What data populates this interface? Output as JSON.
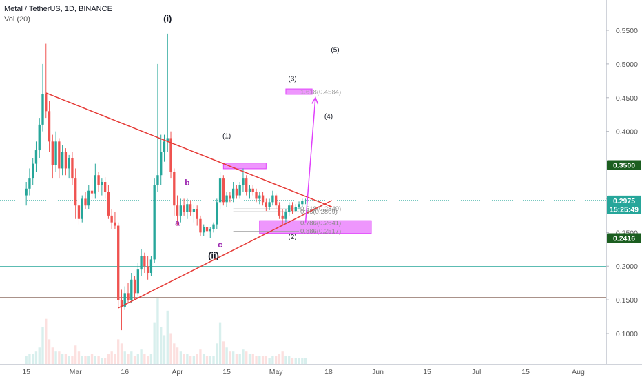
{
  "header": {
    "title": "Metal / TetherUS, 1D, BINANCE",
    "volume_indicator": "Vol (20)"
  },
  "colors": {
    "up": "#26a69a",
    "down": "#ef5350",
    "trendline": "#e53935",
    "projection": "#e040fb",
    "zone_fill": "#e040fb",
    "level_green": "#1b5e20",
    "level_red": "#8d6e63",
    "fib_text": "#9e9e9e",
    "wave_label": "#131722",
    "abc_label": "#9c27b0"
  },
  "chart_data": {
    "type": "candlestick",
    "symbol": "Metal / TetherUS",
    "interval": "1D",
    "exchange": "BINANCE",
    "ylim": [
      0.055,
      0.595
    ],
    "y_ticks": [
      "0.1000",
      "0.1500",
      "0.2000",
      "0.2500",
      "0.3000",
      "0.3500",
      "0.4000",
      "0.4500",
      "0.5000",
      "0.5500"
    ],
    "x_ticks": [
      "15",
      "Mar",
      "16",
      "Apr",
      "15",
      "May",
      "18",
      "Jun",
      "15",
      "Jul",
      "15",
      "Aug"
    ],
    "x_tick_index": [
      0,
      15,
      30,
      46,
      61,
      76,
      92,
      107,
      122,
      137,
      152,
      168
    ],
    "last_index": 93,
    "price_labels": [
      {
        "text": "0.3500",
        "value": 0.35,
        "style": "green"
      },
      {
        "text": "0.2975",
        "value": 0.2975,
        "style": "teal"
      },
      {
        "text": "15:25:49",
        "value": 0.2845,
        "style": "teal"
      },
      {
        "text": "0.2416",
        "value": 0.2416,
        "style": "green"
      }
    ],
    "candles": [
      [
        0.305,
        0.325,
        0.29,
        0.315
      ],
      [
        0.315,
        0.345,
        0.305,
        0.33
      ],
      [
        0.33,
        0.36,
        0.32,
        0.352
      ],
      [
        0.352,
        0.385,
        0.34,
        0.372
      ],
      [
        0.372,
        0.42,
        0.36,
        0.41
      ],
      [
        0.41,
        0.5,
        0.4,
        0.455
      ],
      [
        0.455,
        0.53,
        0.42,
        0.43
      ],
      [
        0.43,
        0.445,
        0.37,
        0.385
      ],
      [
        0.385,
        0.395,
        0.33,
        0.35
      ],
      [
        0.35,
        0.4,
        0.34,
        0.385
      ],
      [
        0.385,
        0.39,
        0.33,
        0.345
      ],
      [
        0.345,
        0.38,
        0.335,
        0.37
      ],
      [
        0.37,
        0.375,
        0.335,
        0.345
      ],
      [
        0.345,
        0.365,
        0.33,
        0.36
      ],
      [
        0.36,
        0.37,
        0.32,
        0.33
      ],
      [
        0.33,
        0.345,
        0.27,
        0.29
      ],
      [
        0.29,
        0.3,
        0.262,
        0.27
      ],
      [
        0.27,
        0.305,
        0.265,
        0.3
      ],
      [
        0.3,
        0.31,
        0.285,
        0.29
      ],
      [
        0.29,
        0.32,
        0.285,
        0.312
      ],
      [
        0.312,
        0.33,
        0.3,
        0.308
      ],
      [
        0.308,
        0.352,
        0.3,
        0.335
      ],
      [
        0.335,
        0.34,
        0.31,
        0.32
      ],
      [
        0.32,
        0.33,
        0.305,
        0.325
      ],
      [
        0.325,
        0.332,
        0.3,
        0.31
      ],
      [
        0.31,
        0.32,
        0.27,
        0.275
      ],
      [
        0.275,
        0.285,
        0.255,
        0.265
      ],
      [
        0.265,
        0.28,
        0.255,
        0.26
      ],
      [
        0.26,
        0.265,
        0.14,
        0.15
      ],
      [
        0.15,
        0.165,
        0.105,
        0.14
      ],
      [
        0.14,
        0.17,
        0.135,
        0.16
      ],
      [
        0.16,
        0.175,
        0.145,
        0.15
      ],
      [
        0.15,
        0.19,
        0.145,
        0.18
      ],
      [
        0.18,
        0.185,
        0.15,
        0.16
      ],
      [
        0.16,
        0.205,
        0.155,
        0.195
      ],
      [
        0.195,
        0.225,
        0.185,
        0.215
      ],
      [
        0.215,
        0.22,
        0.19,
        0.2
      ],
      [
        0.2,
        0.215,
        0.18,
        0.19
      ],
      [
        0.19,
        0.215,
        0.185,
        0.21
      ],
      [
        0.21,
        0.33,
        0.205,
        0.32
      ],
      [
        0.32,
        0.5,
        0.31,
        0.335
      ],
      [
        0.335,
        0.395,
        0.32,
        0.37
      ],
      [
        0.37,
        0.395,
        0.355,
        0.385
      ],
      [
        0.385,
        0.545,
        0.37,
        0.39
      ],
      [
        0.39,
        0.4,
        0.33,
        0.34
      ],
      [
        0.34,
        0.345,
        0.275,
        0.29
      ],
      [
        0.29,
        0.305,
        0.26,
        0.275
      ],
      [
        0.275,
        0.3,
        0.265,
        0.29
      ],
      [
        0.29,
        0.3,
        0.275,
        0.28
      ],
      [
        0.28,
        0.3,
        0.27,
        0.292
      ],
      [
        0.292,
        0.298,
        0.275,
        0.28
      ],
      [
        0.28,
        0.29,
        0.265,
        0.285
      ],
      [
        0.285,
        0.29,
        0.26,
        0.27
      ],
      [
        0.27,
        0.275,
        0.245,
        0.25
      ],
      [
        0.25,
        0.262,
        0.245,
        0.258
      ],
      [
        0.258,
        0.262,
        0.248,
        0.252
      ],
      [
        0.252,
        0.258,
        0.242,
        0.255
      ],
      [
        0.255,
        0.265,
        0.25,
        0.262
      ],
      [
        0.262,
        0.3,
        0.255,
        0.295
      ],
      [
        0.295,
        0.34,
        0.285,
        0.33
      ],
      [
        0.33,
        0.335,
        0.29,
        0.295
      ],
      [
        0.295,
        0.31,
        0.288,
        0.305
      ],
      [
        0.305,
        0.31,
        0.295,
        0.3
      ],
      [
        0.3,
        0.325,
        0.295,
        0.315
      ],
      [
        0.315,
        0.32,
        0.3,
        0.305
      ],
      [
        0.305,
        0.325,
        0.3,
        0.32
      ],
      [
        0.32,
        0.345,
        0.31,
        0.33
      ],
      [
        0.33,
        0.335,
        0.305,
        0.31
      ],
      [
        0.31,
        0.32,
        0.3,
        0.315
      ],
      [
        0.315,
        0.32,
        0.305,
        0.31
      ],
      [
        0.31,
        0.315,
        0.295,
        0.3
      ],
      [
        0.3,
        0.31,
        0.292,
        0.305
      ],
      [
        0.305,
        0.31,
        0.29,
        0.295
      ],
      [
        0.295,
        0.3,
        0.282,
        0.288
      ],
      [
        0.288,
        0.3,
        0.283,
        0.295
      ],
      [
        0.295,
        0.312,
        0.29,
        0.305
      ],
      [
        0.305,
        0.308,
        0.285,
        0.29
      ],
      [
        0.29,
        0.295,
        0.27,
        0.275
      ],
      [
        0.275,
        0.285,
        0.26,
        0.27
      ],
      [
        0.27,
        0.285,
        0.265,
        0.28
      ],
      [
        0.28,
        0.295,
        0.275,
        0.29
      ],
      [
        0.29,
        0.295,
        0.278,
        0.282
      ],
      [
        0.282,
        0.292,
        0.28,
        0.288
      ],
      [
        0.288,
        0.296,
        0.284,
        0.292
      ],
      [
        0.292,
        0.3,
        0.288,
        0.297
      ],
      [
        0.297,
        0.3,
        0.292,
        0.2975
      ]
    ],
    "volume": [
      4,
      5,
      5,
      6,
      8,
      18,
      22,
      12,
      8,
      6,
      6,
      5,
      5,
      4,
      4,
      9,
      6,
      4,
      4,
      4,
      5,
      4,
      4,
      3,
      3,
      5,
      6,
      5,
      12,
      10,
      6,
      5,
      6,
      4,
      5,
      7,
      5,
      4,
      5,
      20,
      32,
      18,
      14,
      26,
      15,
      10,
      8,
      6,
      5,
      5,
      4,
      4,
      5,
      7,
      5,
      4,
      4,
      4,
      10,
      20,
      11,
      8,
      6,
      6,
      5,
      5,
      7,
      6,
      5,
      5,
      4,
      4,
      4,
      4,
      3,
      4,
      4,
      5,
      6,
      4,
      4,
      3,
      3,
      3,
      3,
      3
    ],
    "horizontal_levels": [
      {
        "value": 0.35,
        "style": "green"
      },
      {
        "value": 0.2416,
        "style": "green"
      },
      {
        "value": 0.1995,
        "style": "teal"
      },
      {
        "value": 0.1535,
        "style": "red"
      },
      {
        "value": 0.2975,
        "style": "dotted"
      }
    ],
    "fib_levels": [
      {
        "label": "0.618(0.2849)",
        "value": 0.2849
      },
      {
        "label": "0.65(0.2809)",
        "value": 0.2809
      },
      {
        "label": "0.786(0.2641)",
        "value": 0.2641
      },
      {
        "label": "0.886(0.2517)",
        "value": 0.2517
      },
      {
        "label": "1.618(0.4584)",
        "value": 0.4584
      }
    ],
    "zones": [
      {
        "i0": 71,
        "i1": 105,
        "hi": 0.2675,
        "lo": 0.2485
      },
      {
        "i0": 60,
        "i1": 73,
        "hi": 0.353,
        "lo": 0.3445
      },
      {
        "i0": 79,
        "i1": 87,
        "hi": 0.463,
        "lo": 0.455
      }
    ],
    "trendlines": [
      {
        "i0": 6,
        "v0": 0.457,
        "i1": 93,
        "v1": 0.288
      },
      {
        "i0": 28,
        "v0": 0.138,
        "i1": 93,
        "v1": 0.2975
      }
    ],
    "projection": {
      "i0": 85,
      "v0": 0.265,
      "i1": 88,
      "v1": 0.45
    },
    "wave_labels": [
      {
        "text": "(i)",
        "i": 43,
        "v": 0.563,
        "bold": true
      },
      {
        "text": "(ii)",
        "i": 57,
        "v": 0.211,
        "bold": true
      },
      {
        "text": "(1)",
        "i": 61,
        "v": 0.39,
        "bold": false
      },
      {
        "text": "(2)",
        "i": 81,
        "v": 0.24,
        "bold": false
      },
      {
        "text": "(3)",
        "i": 81,
        "v": 0.475,
        "bold": false
      },
      {
        "text": "(4)",
        "i": 92,
        "v": 0.419,
        "bold": false
      },
      {
        "text": "(5)",
        "i": 94,
        "v": 0.518,
        "bold": false
      }
    ],
    "abc_labels": [
      {
        "text": "a",
        "i": 46,
        "v": 0.26
      },
      {
        "text": "b",
        "i": 49,
        "v": 0.32
      },
      {
        "text": "c",
        "i": 59,
        "v": 0.228
      }
    ]
  }
}
